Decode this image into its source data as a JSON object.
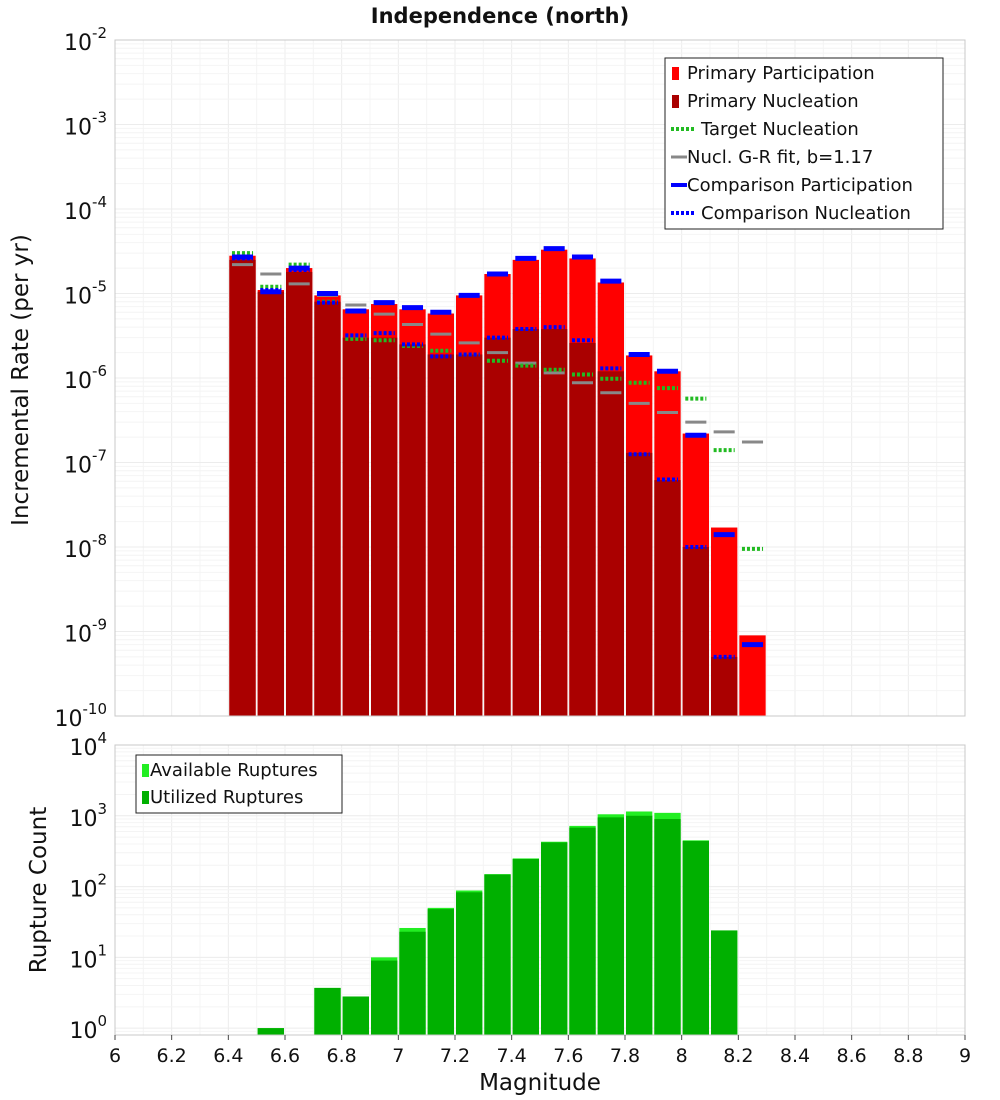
{
  "chart_data": [
    {
      "type": "bar",
      "title": "Independence (north)",
      "ylabel": "Incremental Rate (per yr)",
      "xlabel": "",
      "y_scale": "log",
      "ylim": [
        1e-10,
        0.01
      ],
      "xlim": [
        6,
        9
      ],
      "y_tick_exponents": [
        -10,
        -9,
        -8,
        -7,
        -6,
        -5,
        -4,
        -3,
        -2
      ],
      "grid": true,
      "legend_position": "top-right",
      "colors": {
        "primary_participation": "#ff0000",
        "primary_nucleation": "#aa0000",
        "target_nucleation": "#22bb22",
        "gr_fit": "#888888",
        "comparison": "#0000ff"
      },
      "legend": [
        {
          "key": "primary_participation",
          "label": "Primary Participation",
          "style": "box"
        },
        {
          "key": "primary_nucleation",
          "label": "Primary Nucleation",
          "style": "box"
        },
        {
          "key": "target_nucleation",
          "label": "Target Nucleation",
          "style": "dotted"
        },
        {
          "key": "gr_fit",
          "label": "Nucl. G-R fit, b=1.17",
          "style": "solid"
        },
        {
          "key": "comparison_participation",
          "label": "Comparison Participation",
          "style": "thick"
        },
        {
          "key": "comparison_nucleation",
          "label": "Comparison Nucleation",
          "style": "dotted-blue"
        }
      ],
      "x": [
        6.45,
        6.55,
        6.65,
        6.75,
        6.85,
        6.95,
        7.05,
        7.15,
        7.25,
        7.35,
        7.45,
        7.55,
        7.65,
        7.75,
        7.85,
        7.95,
        8.05,
        8.15,
        8.25
      ],
      "series": [
        {
          "name": "Primary Participation",
          "values": [
            2.8e-05,
            1.1e-05,
            2e-05,
            9.5e-06,
            6.5e-06,
            7.5e-06,
            6.5e-06,
            5.8e-06,
            9.5e-06,
            1.7e-05,
            2.5e-05,
            3.3e-05,
            2.6e-05,
            1.35e-05,
            1.85e-06,
            1.2e-06,
            2.2e-07,
            1.7e-08,
            9e-10
          ]
        },
        {
          "name": "Primary Nucleation",
          "values": [
            2.5e-05,
            1.05e-05,
            1.8e-05,
            8e-06,
            3e-06,
            3e-06,
            2.5e-06,
            1.9e-06,
            1.9e-06,
            3e-06,
            3.8e-06,
            3.8e-06,
            2.6e-06,
            1.2e-06,
            1.3e-07,
            6.2e-08,
            1e-08,
            5e-10,
            null
          ]
        },
        {
          "name": "Target Nucleation",
          "values": [
            3e-05,
            1.2e-05,
            2.2e-05,
            8e-06,
            2.9e-06,
            2.8e-06,
            2.4e-06,
            2.1e-06,
            1.9e-06,
            1.6e-06,
            1.4e-06,
            1.25e-06,
            1.1e-06,
            9.8e-07,
            8.8e-07,
            7.6e-07,
            5.7e-07,
            1.4e-07,
            9.5e-09
          ]
        },
        {
          "name": "Nucl. G-R fit, b=1.17",
          "values": [
            2.2e-05,
            1.7e-05,
            1.3e-05,
            9.5e-06,
            7.3e-06,
            5.7e-06,
            4.3e-06,
            3.3e-06,
            2.6e-06,
            2e-06,
            1.5e-06,
            1.15e-06,
            8.8e-07,
            6.7e-07,
            5e-07,
            3.9e-07,
            3e-07,
            2.3e-07,
            1.75e-07
          ]
        },
        {
          "name": "Comparison Participation",
          "values": [
            2.7e-05,
            1.05e-05,
            2e-05,
            1e-05,
            6.2e-06,
            7.8e-06,
            6.8e-06,
            6e-06,
            9.5e-06,
            1.7e-05,
            2.6e-05,
            3.4e-05,
            2.7e-05,
            1.4e-05,
            1.9e-06,
            1.2e-06,
            2.1e-07,
            1.4e-08,
            7e-10
          ]
        },
        {
          "name": "Comparison Nucleation",
          "values": [
            2.6e-05,
            1.1e-05,
            1.9e-05,
            7.8e-06,
            3.2e-06,
            3.4e-06,
            2.5e-06,
            1.8e-06,
            1.9e-06,
            3e-06,
            3.8e-06,
            4e-06,
            2.8e-06,
            1.3e-06,
            1.25e-07,
            6.3e-08,
            1e-08,
            5e-10,
            null
          ]
        }
      ]
    },
    {
      "type": "bar",
      "title": "",
      "xlabel": "Magnitude",
      "ylabel": "Rupture Count",
      "y_scale": "log",
      "ylim": [
        0.8,
        10000
      ],
      "xlim": [
        6,
        9
      ],
      "y_tick_exponents": [
        0,
        1,
        2,
        3,
        4
      ],
      "x_ticks": [
        "6",
        "6.2",
        "6.4",
        "6.6",
        "6.8",
        "7",
        "7.2",
        "7.4",
        "7.6",
        "7.8",
        "8",
        "8.2",
        "8.4",
        "8.6",
        "8.8",
        "9"
      ],
      "grid": true,
      "legend_position": "top-left",
      "colors": {
        "available": "#22ee22",
        "utilized": "#00b000"
      },
      "legend": [
        {
          "key": "available",
          "label": "Available Ruptures"
        },
        {
          "key": "utilized",
          "label": "Utilized Ruptures"
        }
      ],
      "x": [
        6.55,
        6.75,
        6.85,
        6.95,
        7.05,
        7.15,
        7.25,
        7.35,
        7.45,
        7.55,
        7.65,
        7.75,
        7.85,
        7.95,
        8.05,
        8.15
      ],
      "series": [
        {
          "name": "Available Ruptures",
          "values": [
            1,
            3.7,
            2.8,
            10,
            26,
            50,
            88,
            150,
            250,
            430,
            720,
            1050,
            1150,
            1100,
            450,
            24
          ]
        },
        {
          "name": "Utilized Ruptures",
          "values": [
            1,
            3.7,
            2.8,
            9,
            23,
            48,
            83,
            148,
            245,
            420,
            680,
            950,
            1000,
            900,
            440,
            24
          ]
        }
      ]
    }
  ]
}
